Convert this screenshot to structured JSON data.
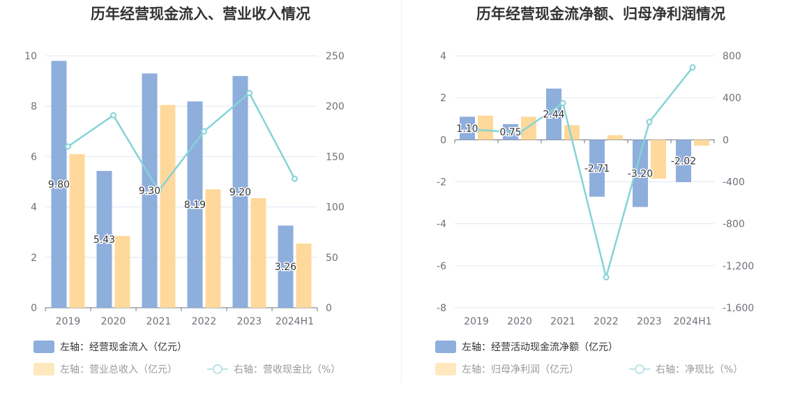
{
  "chart_data": [
    {
      "type": "bar",
      "title": "历年经营现金流入、营业收入情况",
      "categories": [
        "2019",
        "2020",
        "2021",
        "2022",
        "2023",
        "2024H1"
      ],
      "y_left": {
        "ticks": [
          "0",
          "2",
          "4",
          "6",
          "8",
          "10"
        ],
        "min": 0,
        "max": 10
      },
      "y_right": {
        "ticks": [
          "0",
          "50",
          "100",
          "150",
          "200",
          "250"
        ],
        "min": 0,
        "max": 250
      },
      "series": [
        {
          "name": "左轴：经营现金流入（亿元）",
          "type": "bar",
          "axis": "left",
          "color": "#8eaedc",
          "values": [
            9.8,
            5.43,
            9.3,
            8.19,
            9.2,
            3.26
          ],
          "labels": [
            "9.80",
            "5.43",
            "9.30",
            "8.19",
            "9.20",
            "3.26"
          ]
        },
        {
          "name": "左轴：营业总收入（亿元）",
          "type": "bar",
          "axis": "left",
          "color": "#ffd99b",
          "values": [
            6.1,
            2.85,
            8.05,
            4.7,
            4.35,
            2.55
          ]
        },
        {
          "name": "右轴：营收现金比（%）",
          "type": "line",
          "axis": "right",
          "color": "#85d3d6",
          "values": [
            160,
            191,
            116,
            175,
            213,
            128
          ]
        }
      ],
      "grid": true,
      "legend_position": "bottom"
    },
    {
      "type": "bar",
      "title": "历年经营现金流净额、归母净利润情况",
      "categories": [
        "2019",
        "2020",
        "2021",
        "2022",
        "2023",
        "2024H1"
      ],
      "y_left": {
        "ticks": [
          "-8",
          "-6",
          "-4",
          "-2",
          "0",
          "2",
          "4"
        ],
        "min": -8,
        "max": 4
      },
      "y_right": {
        "ticks": [
          "-1,600",
          "-1,200",
          "-800",
          "-400",
          "0",
          "400",
          "800"
        ],
        "min": -1600,
        "max": 800
      },
      "series": [
        {
          "name": "左轴：经营活动现金流净额（亿元）",
          "type": "bar",
          "axis": "left",
          "color": "#8eaedc",
          "values": [
            1.1,
            0.75,
            2.44,
            -2.71,
            -3.2,
            -2.02
          ],
          "labels": [
            "1.10",
            "0.75",
            "2.44",
            "-2.71",
            "-3.20",
            "-2.02"
          ]
        },
        {
          "name": "左轴：归母净利润（亿元）",
          "type": "bar",
          "axis": "left",
          "color": "#ffd99b",
          "values": [
            1.15,
            1.1,
            0.7,
            0.22,
            -1.85,
            -0.28
          ]
        },
        {
          "name": "右轴：净现比（%）",
          "type": "line",
          "axis": "right",
          "color": "#85d3d6",
          "values": [
            95,
            68,
            350,
            -1310,
            170,
            690
          ]
        }
      ],
      "grid": true,
      "legend_position": "bottom"
    }
  ]
}
